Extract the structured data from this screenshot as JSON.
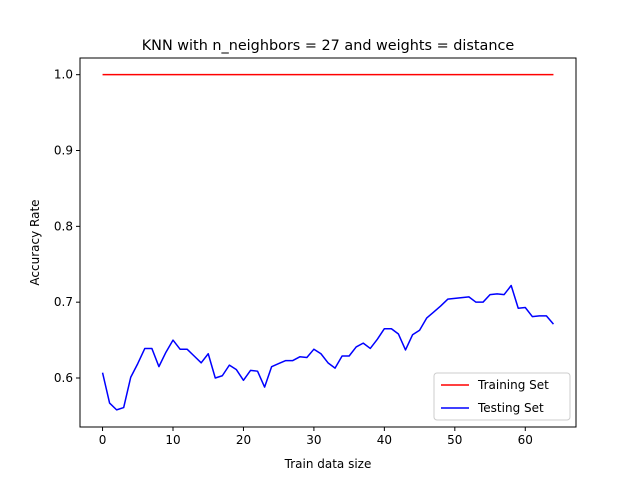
{
  "chart_data": {
    "type": "line",
    "title": "KNN with n_neighbors = 27 and weights = distance",
    "xlabel": "Train data size",
    "ylabel": "Accuracy Rate",
    "xlim": [
      -3.2,
      67.2
    ],
    "ylim": [
      0.5354,
      1.022
    ],
    "xticks": [
      0,
      10,
      20,
      30,
      40,
      50,
      60
    ],
    "yticks": [
      0.6,
      0.7,
      0.8,
      0.9,
      1.0
    ],
    "ytick_labels": [
      "0.6",
      "0.7",
      "0.8",
      "0.9",
      "1.0"
    ],
    "grid": false,
    "legend_position": "lower-right",
    "series": [
      {
        "name": "Training Set",
        "color": "#ff0000",
        "x": [
          0,
          64
        ],
        "y": [
          1.0,
          1.0
        ]
      },
      {
        "name": "Testing Set",
        "color": "#0000ff",
        "x": [
          0,
          1,
          2,
          3,
          4,
          5,
          6,
          7,
          8,
          9,
          10,
          11,
          12,
          13,
          14,
          15,
          16,
          17,
          18,
          19,
          20,
          21,
          22,
          23,
          24,
          25,
          26,
          27,
          28,
          29,
          30,
          31,
          32,
          33,
          34,
          35,
          36,
          37,
          38,
          39,
          40,
          41,
          42,
          43,
          44,
          45,
          46,
          47,
          48,
          49,
          50,
          51,
          52,
          53,
          54,
          55,
          56,
          57,
          58,
          59,
          60,
          61,
          62,
          63,
          64
        ],
        "y": [
          0.607,
          0.567,
          0.558,
          0.561,
          0.601,
          0.619,
          0.639,
          0.639,
          0.615,
          0.634,
          0.65,
          0.638,
          0.638,
          0.629,
          0.62,
          0.632,
          0.6,
          0.603,
          0.617,
          0.611,
          0.597,
          0.61,
          0.609,
          0.588,
          0.615,
          0.619,
          0.623,
          0.623,
          0.628,
          0.627,
          0.638,
          0.632,
          0.62,
          0.613,
          0.629,
          0.629,
          0.641,
          0.646,
          0.639,
          0.651,
          0.665,
          0.665,
          0.658,
          0.637,
          0.657,
          0.663,
          0.679,
          0.687,
          0.695,
          0.704,
          0.705,
          0.706,
          0.707,
          0.7,
          0.7,
          0.71,
          0.711,
          0.71,
          0.722,
          0.692,
          0.693,
          0.681,
          0.682,
          0.682,
          0.671
        ]
      }
    ]
  }
}
